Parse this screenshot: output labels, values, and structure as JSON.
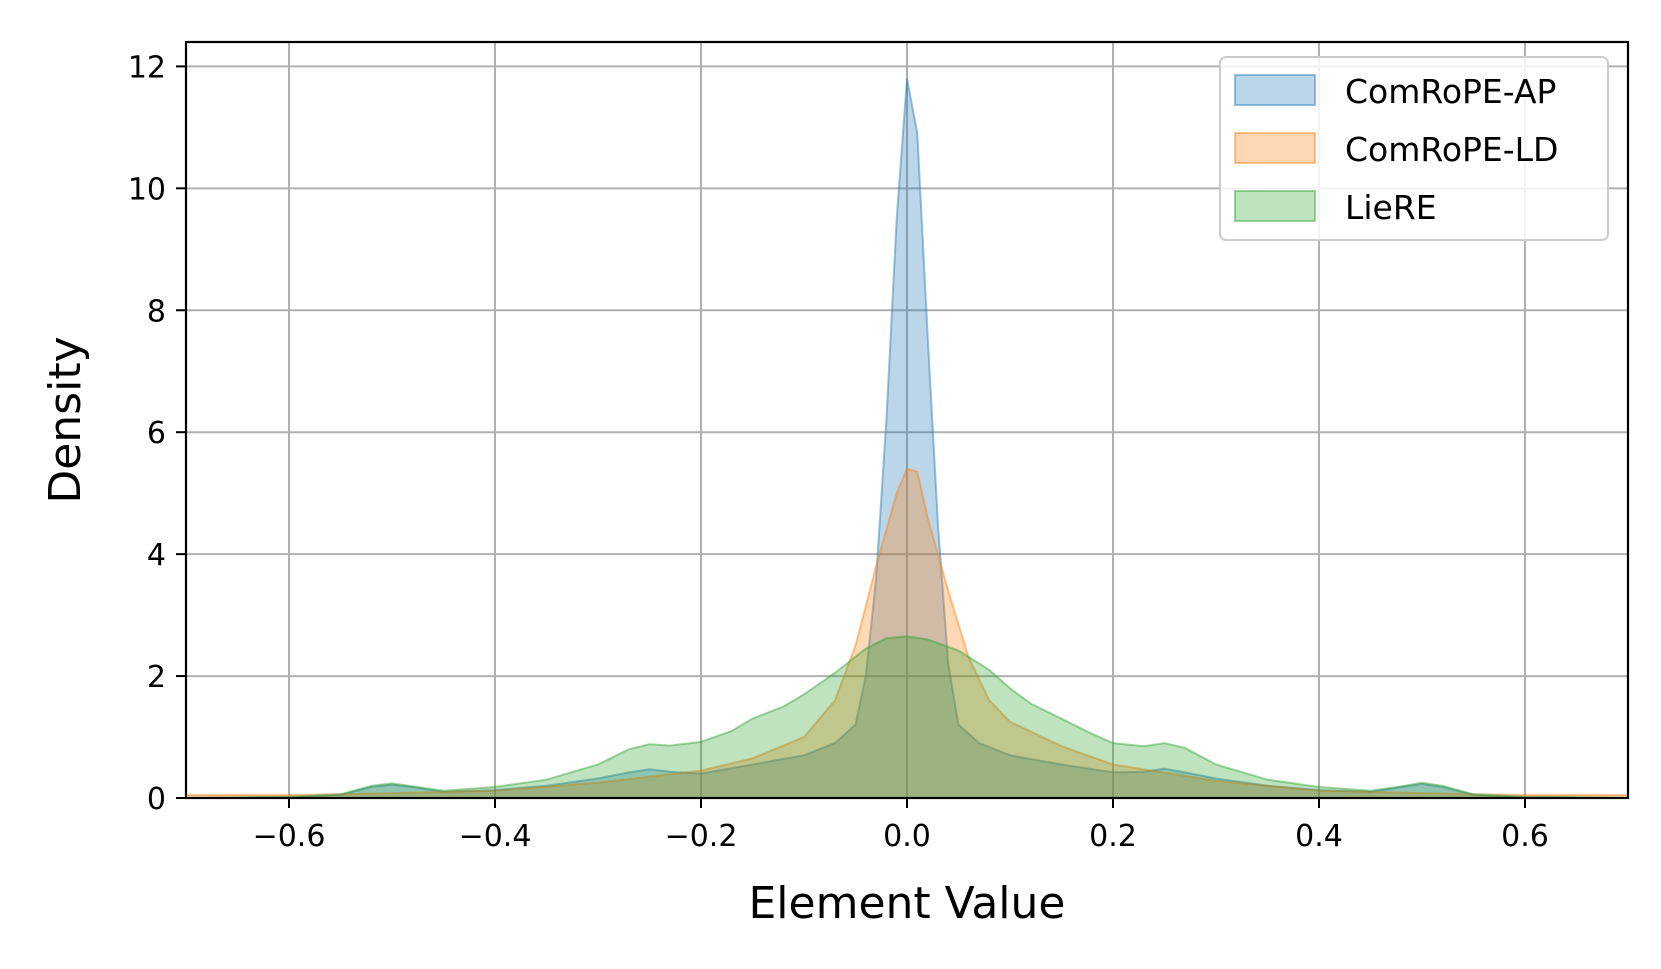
{
  "chart_data": {
    "type": "area",
    "xlabel": "Element Value",
    "ylabel": "Density",
    "xlim": [
      -0.7,
      0.7
    ],
    "ylim": [
      0,
      12.4
    ],
    "grid": true,
    "legend_position": "top-right",
    "x_ticks": [
      -0.6,
      -0.4,
      -0.2,
      0.0,
      0.2,
      0.4,
      0.6
    ],
    "x_tick_labels": [
      "−0.6",
      "−0.4",
      "−0.2",
      "0.0",
      "0.2",
      "0.4",
      "0.6"
    ],
    "y_ticks": [
      0,
      2,
      4,
      6,
      8,
      10,
      12
    ],
    "y_tick_labels": [
      "0",
      "2",
      "4",
      "6",
      "8",
      "10",
      "12"
    ],
    "series": [
      {
        "name": "ComRoPE-AP",
        "color": "#1f77b4",
        "points": [
          [
            -0.7,
            0.0
          ],
          [
            -0.6,
            0.01
          ],
          [
            -0.55,
            0.05
          ],
          [
            -0.52,
            0.18
          ],
          [
            -0.5,
            0.22
          ],
          [
            -0.48,
            0.18
          ],
          [
            -0.45,
            0.1
          ],
          [
            -0.4,
            0.13
          ],
          [
            -0.35,
            0.2
          ],
          [
            -0.3,
            0.32
          ],
          [
            -0.27,
            0.42
          ],
          [
            -0.25,
            0.47
          ],
          [
            -0.23,
            0.43
          ],
          [
            -0.2,
            0.4
          ],
          [
            -0.15,
            0.55
          ],
          [
            -0.1,
            0.7
          ],
          [
            -0.07,
            0.9
          ],
          [
            -0.05,
            1.2
          ],
          [
            -0.04,
            2.0
          ],
          [
            -0.03,
            3.6
          ],
          [
            -0.02,
            6.2
          ],
          [
            -0.01,
            9.5
          ],
          [
            0.0,
            11.8
          ],
          [
            0.01,
            10.9
          ],
          [
            0.02,
            7.6
          ],
          [
            0.03,
            4.5
          ],
          [
            0.04,
            2.2
          ],
          [
            0.05,
            1.2
          ],
          [
            0.07,
            0.9
          ],
          [
            0.1,
            0.7
          ],
          [
            0.15,
            0.55
          ],
          [
            0.2,
            0.42
          ],
          [
            0.23,
            0.43
          ],
          [
            0.25,
            0.48
          ],
          [
            0.27,
            0.42
          ],
          [
            0.3,
            0.32
          ],
          [
            0.35,
            0.2
          ],
          [
            0.4,
            0.13
          ],
          [
            0.45,
            0.1
          ],
          [
            0.48,
            0.18
          ],
          [
            0.5,
            0.23
          ],
          [
            0.52,
            0.18
          ],
          [
            0.55,
            0.05
          ],
          [
            0.6,
            0.01
          ],
          [
            0.7,
            0.0
          ]
        ]
      },
      {
        "name": "ComRoPE-LD",
        "color": "#ff7f0e",
        "points": [
          [
            -0.7,
            0.05
          ],
          [
            -0.6,
            0.05
          ],
          [
            -0.55,
            0.06
          ],
          [
            -0.5,
            0.08
          ],
          [
            -0.4,
            0.12
          ],
          [
            -0.3,
            0.25
          ],
          [
            -0.2,
            0.45
          ],
          [
            -0.15,
            0.65
          ],
          [
            -0.1,
            1.0
          ],
          [
            -0.07,
            1.6
          ],
          [
            -0.05,
            2.5
          ],
          [
            -0.03,
            3.8
          ],
          [
            -0.01,
            5.0
          ],
          [
            0.0,
            5.4
          ],
          [
            0.01,
            5.35
          ],
          [
            0.02,
            4.6
          ],
          [
            0.04,
            3.4
          ],
          [
            0.06,
            2.3
          ],
          [
            0.08,
            1.6
          ],
          [
            0.1,
            1.25
          ],
          [
            0.15,
            0.85
          ],
          [
            0.2,
            0.55
          ],
          [
            0.3,
            0.28
          ],
          [
            0.4,
            0.12
          ],
          [
            0.5,
            0.08
          ],
          [
            0.55,
            0.06
          ],
          [
            0.6,
            0.05
          ],
          [
            0.7,
            0.05
          ]
        ]
      },
      {
        "name": "LieRE",
        "color": "#2ca02c",
        "points": [
          [
            -0.7,
            0.0
          ],
          [
            -0.6,
            0.02
          ],
          [
            -0.55,
            0.06
          ],
          [
            -0.52,
            0.2
          ],
          [
            -0.5,
            0.24
          ],
          [
            -0.48,
            0.19
          ],
          [
            -0.45,
            0.12
          ],
          [
            -0.4,
            0.18
          ],
          [
            -0.35,
            0.3
          ],
          [
            -0.3,
            0.55
          ],
          [
            -0.27,
            0.8
          ],
          [
            -0.25,
            0.88
          ],
          [
            -0.23,
            0.86
          ],
          [
            -0.2,
            0.92
          ],
          [
            -0.17,
            1.1
          ],
          [
            -0.15,
            1.3
          ],
          [
            -0.12,
            1.5
          ],
          [
            -0.1,
            1.7
          ],
          [
            -0.07,
            2.05
          ],
          [
            -0.04,
            2.45
          ],
          [
            -0.02,
            2.62
          ],
          [
            0.0,
            2.65
          ],
          [
            0.02,
            2.6
          ],
          [
            0.05,
            2.42
          ],
          [
            0.08,
            2.1
          ],
          [
            0.1,
            1.8
          ],
          [
            0.12,
            1.55
          ],
          [
            0.15,
            1.3
          ],
          [
            0.18,
            1.05
          ],
          [
            0.2,
            0.9
          ],
          [
            0.23,
            0.85
          ],
          [
            0.25,
            0.9
          ],
          [
            0.27,
            0.82
          ],
          [
            0.3,
            0.55
          ],
          [
            0.35,
            0.3
          ],
          [
            0.4,
            0.18
          ],
          [
            0.45,
            0.12
          ],
          [
            0.48,
            0.19
          ],
          [
            0.5,
            0.25
          ],
          [
            0.52,
            0.2
          ],
          [
            0.55,
            0.06
          ],
          [
            0.6,
            0.02
          ],
          [
            0.7,
            0.0
          ]
        ]
      }
    ]
  }
}
